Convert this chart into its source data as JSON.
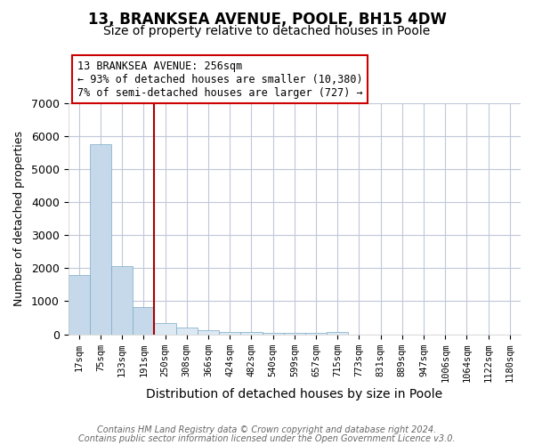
{
  "title": "13, BRANKSEA AVENUE, POOLE, BH15 4DW",
  "subtitle": "Size of property relative to detached houses in Poole",
  "xlabel": "Distribution of detached houses by size in Poole",
  "ylabel": "Number of detached properties",
  "bar_labels": [
    "17sqm",
    "75sqm",
    "133sqm",
    "191sqm",
    "250sqm",
    "308sqm",
    "366sqm",
    "424sqm",
    "482sqm",
    "540sqm",
    "599sqm",
    "657sqm",
    "715sqm",
    "773sqm",
    "831sqm",
    "889sqm",
    "947sqm",
    "1006sqm",
    "1064sqm",
    "1122sqm",
    "1180sqm"
  ],
  "bar_values": [
    1780,
    5750,
    2050,
    820,
    340,
    200,
    110,
    80,
    65,
    55,
    50,
    45,
    80,
    0,
    0,
    0,
    0,
    0,
    0,
    0,
    0
  ],
  "bar_color_left": "#c6d9ea",
  "bar_color_right": "#dce8f2",
  "bar_edge_color": "#7aaac8",
  "vline_index": 3.5,
  "vline_color": "#aa0000",
  "annotation_text": "13 BRANKSEA AVENUE: 256sqm\n← 93% of detached houses are smaller (10,380)\n7% of semi-detached houses are larger (727) →",
  "annotation_box_color": "#cc0000",
  "annotation_text_color": "#000000",
  "ylim": [
    0,
    7000
  ],
  "yticks": [
    0,
    1000,
    2000,
    3000,
    4000,
    5000,
    6000,
    7000
  ],
  "footer1": "Contains HM Land Registry data © Crown copyright and database right 2024.",
  "footer2": "Contains public sector information licensed under the Open Government Licence v3.0.",
  "bg_color": "#ffffff",
  "grid_color": "#c0c8d8",
  "title_fontsize": 12,
  "subtitle_fontsize": 10
}
